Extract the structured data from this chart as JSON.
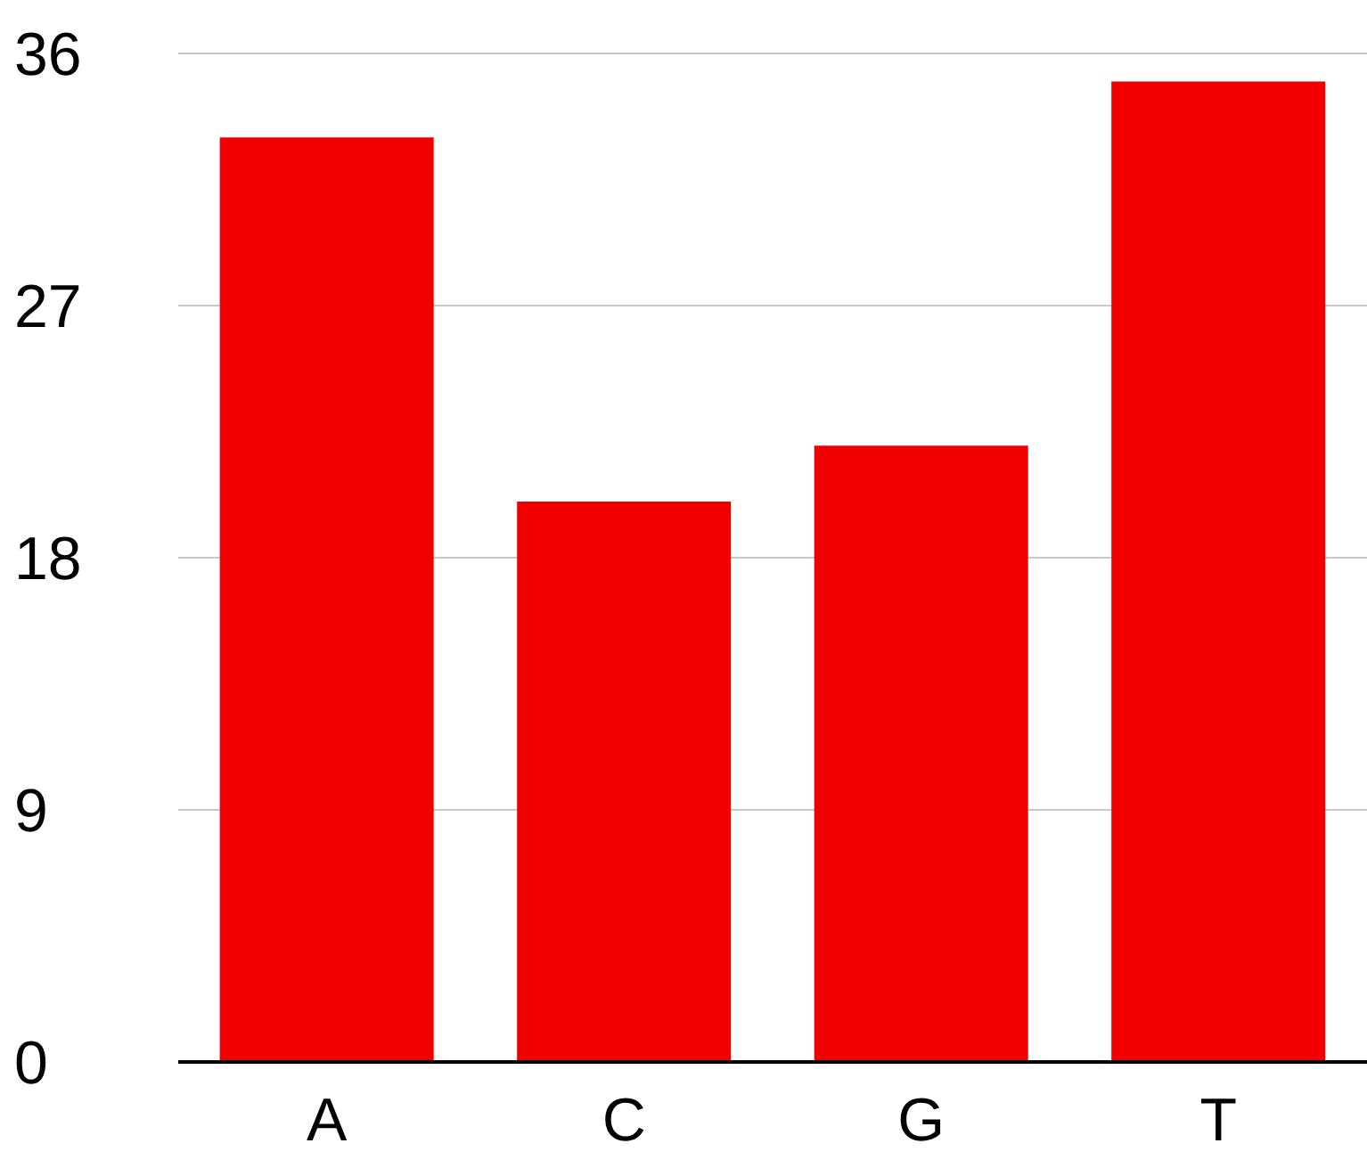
{
  "chart_data": {
    "type": "bar",
    "categories": [
      "A",
      "C",
      "G",
      "T"
    ],
    "values": [
      33,
      20,
      22,
      35
    ],
    "color": "#f00000",
    "ylim": [
      0,
      36
    ],
    "yticks": [
      0,
      9,
      18,
      27,
      36
    ],
    "grid": "y"
  }
}
